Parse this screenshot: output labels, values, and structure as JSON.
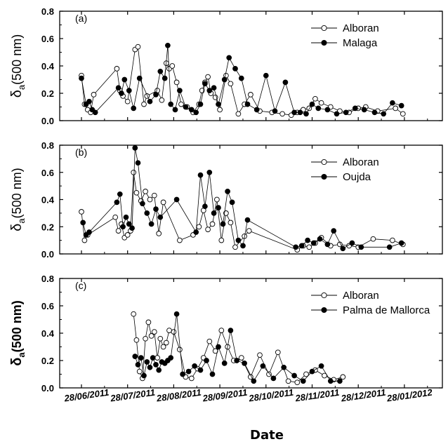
{
  "x_axis_label": "Date",
  "x_tick_labels": [
    "28/06/2011",
    "28/07/2011",
    "28/08/2011",
    "28/09/2011",
    "28/10/2011",
    "28/11/2011",
    "28/12/2011",
    "28/01/2012"
  ],
  "chart_data": [
    {
      "type": "line",
      "panel_label": "(a)",
      "ylabel": "δa(500 nm)",
      "ylabel_main": "δ",
      "ylabel_sub": "a",
      "ylabel_rest": "(500 nm)",
      "ylim": [
        0,
        0.8
      ],
      "y_ticks": [
        "0.0",
        "0.2",
        "0.4",
        "0.6",
        "0.8"
      ],
      "legend_position": "top-right",
      "series": [
        {
          "name": "Alboran",
          "marker": "open-circle",
          "x": [
            "2011-06-28",
            "2011-06-30",
            "2011-07-02",
            "2011-07-04",
            "2011-07-06",
            "2011-07-21",
            "2011-07-23",
            "2011-07-25",
            "2011-07-28",
            "2011-08-02",
            "2011-08-04",
            "2011-08-08",
            "2011-08-10",
            "2011-08-17",
            "2011-08-20",
            "2011-08-23",
            "2011-08-25",
            "2011-08-27",
            "2011-08-30",
            "2011-09-02",
            "2011-09-06",
            "2011-09-10",
            "2011-09-14",
            "2011-09-16",
            "2011-09-18",
            "2011-09-20",
            "2011-09-22",
            "2011-09-25",
            "2011-09-28",
            "2011-10-02",
            "2011-10-05",
            "2011-10-10",
            "2011-10-14",
            "2011-10-18",
            "2011-10-24",
            "2011-11-01",
            "2011-11-08",
            "2011-11-14",
            "2011-11-18",
            "2011-11-22",
            "2011-11-26",
            "2011-11-30",
            "2011-12-04",
            "2011-12-10",
            "2011-12-16",
            "2011-12-22",
            "2011-12-28",
            "2012-01-02",
            "2012-01-10",
            "2012-01-22",
            "2012-01-27"
          ],
          "y": [
            0.33,
            0.12,
            0.08,
            0.06,
            0.19,
            0.38,
            0.22,
            0.18,
            0.14,
            0.52,
            0.54,
            0.12,
            0.18,
            0.22,
            0.15,
            0.42,
            0.38,
            0.4,
            0.28,
            0.12,
            0.1,
            0.06,
            0.12,
            0.22,
            0.28,
            0.32,
            0.2,
            0.17,
            0.08,
            0.33,
            0.27,
            0.05,
            0.12,
            0.19,
            0.07,
            0.06,
            0.05,
            0.04,
            0.06,
            0.08,
            0.09,
            0.16,
            0.13,
            0.1,
            0.07,
            0.06,
            0.09,
            0.1,
            0.07,
            0.09,
            0.05
          ]
        },
        {
          "name": "Malaga",
          "marker": "filled-circle",
          "x": [
            "2011-06-28",
            "2011-07-01",
            "2011-07-03",
            "2011-07-05",
            "2011-07-07",
            "2011-07-22",
            "2011-07-24",
            "2011-07-26",
            "2011-07-29",
            "2011-08-01",
            "2011-08-05",
            "2011-08-12",
            "2011-08-16",
            "2011-08-19",
            "2011-08-22",
            "2011-08-24",
            "2011-08-26",
            "2011-08-29",
            "2011-09-01",
            "2011-09-05",
            "2011-09-09",
            "2011-09-12",
            "2011-09-15",
            "2011-09-18",
            "2011-09-21",
            "2011-09-24",
            "2011-09-27",
            "2011-10-01",
            "2011-10-04",
            "2011-10-08",
            "2011-10-12",
            "2011-10-16",
            "2011-10-22",
            "2011-10-28",
            "2011-11-03",
            "2011-11-10",
            "2011-11-16",
            "2011-11-20",
            "2011-11-24",
            "2011-11-28",
            "2011-12-02",
            "2011-12-08",
            "2011-12-14",
            "2011-12-20",
            "2011-12-26",
            "2012-01-01",
            "2012-01-08",
            "2012-01-14",
            "2012-01-20",
            "2012-01-26"
          ],
          "y": [
            0.31,
            0.12,
            0.14,
            0.08,
            0.06,
            0.24,
            0.2,
            0.3,
            0.22,
            0.09,
            0.31,
            0.14,
            0.19,
            0.36,
            0.31,
            0.55,
            0.12,
            0.08,
            0.22,
            0.1,
            0.08,
            0.06,
            0.12,
            0.27,
            0.22,
            0.24,
            0.12,
            0.3,
            0.46,
            0.38,
            0.31,
            0.12,
            0.08,
            0.33,
            0.07,
            0.28,
            0.06,
            0.06,
            0.05,
            0.12,
            0.09,
            0.08,
            0.05,
            0.06,
            0.09,
            0.08,
            0.06,
            0.05,
            0.13,
            0.11
          ]
        }
      ]
    },
    {
      "type": "line",
      "panel_label": "(b)",
      "ylabel": "δa(500 nm)",
      "ylabel_main": "δ",
      "ylabel_sub": "a",
      "ylabel_rest": "(500 nm)",
      "ylim": [
        0,
        0.8
      ],
      "y_ticks": [
        "0.0",
        "0.2",
        "0.4",
        "0.6",
        "0.8"
      ],
      "legend_position": "top-right",
      "series": [
        {
          "name": "Alboran",
          "marker": "open-circle",
          "x": [
            "2011-06-28",
            "2011-06-30",
            "2011-07-02",
            "2011-07-20",
            "2011-07-22",
            "2011-07-24",
            "2011-07-26",
            "2011-07-28",
            "2011-07-30",
            "2011-08-01",
            "2011-08-03",
            "2011-08-06",
            "2011-08-09",
            "2011-08-12",
            "2011-08-15",
            "2011-08-18",
            "2011-08-21",
            "2011-09-01",
            "2011-09-10",
            "2011-09-14",
            "2011-09-17",
            "2011-09-20",
            "2011-09-23",
            "2011-09-26",
            "2011-09-29",
            "2011-10-02",
            "2011-10-05",
            "2011-10-08",
            "2011-10-14",
            "2011-10-17",
            "2011-11-18",
            "2011-11-22",
            "2011-11-26",
            "2011-11-30",
            "2011-12-04",
            "2011-12-10",
            "2011-12-16",
            "2011-12-22",
            "2011-12-28",
            "2012-01-07",
            "2012-01-20",
            "2012-01-27"
          ],
          "y": [
            0.31,
            0.1,
            0.14,
            0.27,
            0.17,
            0.22,
            0.12,
            0.14,
            0.17,
            0.6,
            0.45,
            0.39,
            0.46,
            0.4,
            0.43,
            0.15,
            0.38,
            0.1,
            0.14,
            0.2,
            0.32,
            0.18,
            0.22,
            0.4,
            0.1,
            0.3,
            0.23,
            0.05,
            0.13,
            0.17,
            0.03,
            0.06,
            0.05,
            0.08,
            0.12,
            0.06,
            0.07,
            0.06,
            0.05,
            0.11,
            0.1,
            0.07
          ]
        },
        {
          "name": "Oujda",
          "marker": "filled-circle",
          "x": [
            "2011-06-29",
            "2011-07-01",
            "2011-07-03",
            "2011-07-21",
            "2011-07-23",
            "2011-07-25",
            "2011-07-27",
            "2011-07-29",
            "2011-07-31",
            "2011-08-02",
            "2011-08-04",
            "2011-08-07",
            "2011-08-10",
            "2011-08-13",
            "2011-08-16",
            "2011-08-19",
            "2011-08-30",
            "2011-09-12",
            "2011-09-15",
            "2011-09-18",
            "2011-09-21",
            "2011-09-24",
            "2011-09-27",
            "2011-09-30",
            "2011-10-03",
            "2011-10-06",
            "2011-10-10",
            "2011-10-13",
            "2011-10-16",
            "2011-11-17",
            "2011-11-21",
            "2011-11-25",
            "2011-11-29",
            "2011-12-03",
            "2011-12-08",
            "2011-12-12",
            "2011-12-18",
            "2011-12-24",
            "2011-12-30",
            "2012-01-18",
            "2012-01-26"
          ],
          "y": [
            0.23,
            0.14,
            0.16,
            0.38,
            0.44,
            0.2,
            0.27,
            0.22,
            0.19,
            0.78,
            0.67,
            0.37,
            0.3,
            0.22,
            0.33,
            0.27,
            0.4,
            0.16,
            0.58,
            0.35,
            0.6,
            0.3,
            0.34,
            0.22,
            0.46,
            0.38,
            0.1,
            0.06,
            0.25,
            0.05,
            0.06,
            0.1,
            0.08,
            0.11,
            0.07,
            0.17,
            0.04,
            0.08,
            0.05,
            0.05,
            0.08
          ]
        }
      ]
    },
    {
      "type": "line",
      "panel_label": "(c)",
      "ylabel": "δa(500 nm)",
      "ylabel_main": "δ",
      "ylabel_sub": "a",
      "ylabel_rest": "(500 nm)",
      "ylim": [
        0,
        0.8
      ],
      "y_ticks": [
        "0.0",
        "0.2",
        "0.4",
        "0.6",
        "0.8"
      ],
      "legend_position": "top-right",
      "series": [
        {
          "name": "Alboran",
          "marker": "open-circle",
          "x": [
            "2011-08-01",
            "2011-08-03",
            "2011-08-05",
            "2011-08-07",
            "2011-08-09",
            "2011-08-11",
            "2011-08-13",
            "2011-08-15",
            "2011-08-17",
            "2011-08-19",
            "2011-08-21",
            "2011-08-23",
            "2011-08-25",
            "2011-08-28",
            "2011-09-01",
            "2011-09-05",
            "2011-09-09",
            "2011-09-13",
            "2011-09-17",
            "2011-09-21",
            "2011-09-25",
            "2011-09-29",
            "2011-10-03",
            "2011-10-07",
            "2011-10-12",
            "2011-10-18",
            "2011-10-24",
            "2011-10-30",
            "2011-11-05",
            "2011-11-12",
            "2011-11-18",
            "2011-11-24",
            "2011-11-30",
            "2011-12-06",
            "2011-12-12",
            "2011-12-18"
          ],
          "y": [
            0.54,
            0.35,
            0.12,
            0.07,
            0.36,
            0.48,
            0.38,
            0.41,
            0.22,
            0.36,
            0.3,
            0.33,
            0.42,
            0.41,
            0.28,
            0.08,
            0.07,
            0.14,
            0.22,
            0.34,
            0.27,
            0.42,
            0.3,
            0.2,
            0.22,
            0.08,
            0.24,
            0.1,
            0.26,
            0.05,
            0.04,
            0.1,
            0.13,
            0.09,
            0.06,
            0.08
          ]
        },
        {
          "name": "Palma de Mallorca",
          "marker": "filled-circle",
          "x": [
            "2011-08-02",
            "2011-08-04",
            "2011-08-06",
            "2011-08-08",
            "2011-08-10",
            "2011-08-12",
            "2011-08-14",
            "2011-08-16",
            "2011-08-18",
            "2011-08-20",
            "2011-08-22",
            "2011-08-24",
            "2011-08-26",
            "2011-08-30",
            "2011-09-03",
            "2011-09-07",
            "2011-09-11",
            "2011-09-15",
            "2011-09-19",
            "2011-09-23",
            "2011-09-27",
            "2011-10-01",
            "2011-10-05",
            "2011-10-09",
            "2011-10-14",
            "2011-10-20",
            "2011-10-26",
            "2011-11-02",
            "2011-11-09",
            "2011-11-16",
            "2011-11-22",
            "2011-11-28",
            "2011-12-04",
            "2011-12-10",
            "2011-12-16"
          ],
          "y": [
            0.23,
            0.17,
            0.22,
            0.09,
            0.19,
            0.15,
            0.22,
            0.17,
            0.13,
            0.19,
            0.18,
            0.2,
            0.22,
            0.54,
            0.1,
            0.12,
            0.16,
            0.13,
            0.2,
            0.1,
            0.3,
            0.18,
            0.42,
            0.2,
            0.18,
            0.05,
            0.16,
            0.07,
            0.15,
            0.09,
            0.05,
            0.12,
            0.16,
            0.05,
            0.05
          ]
        }
      ]
    }
  ]
}
